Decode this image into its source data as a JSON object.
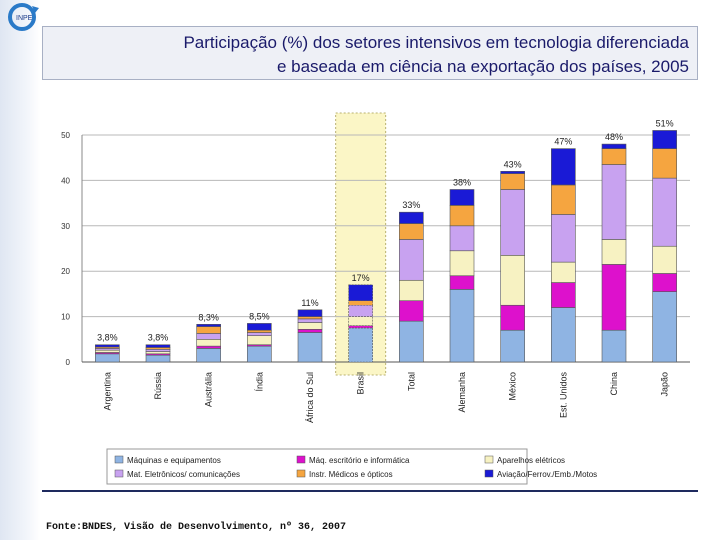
{
  "slide": {
    "title_line1": "Participação (%) dos setores intensivos em tecnologia diferenciada",
    "title_line2": "e baseada em ciência na exportação dos países, 2005",
    "source": "Fonte:BNDES, Visão de Desenvolvimento, nº 36, 2007",
    "logo_text": "INPE"
  },
  "chart_data": {
    "type": "bar",
    "stacked": true,
    "title": "",
    "xlabel": "",
    "ylabel": "",
    "ylim": [
      0,
      50
    ],
    "yticks": [
      "0",
      "10",
      "20",
      "30",
      "40",
      "50"
    ],
    "grid": true,
    "highlight_category": "Brasil",
    "legend_position": "bottom",
    "categories": [
      "Argentina",
      "Rússia",
      "Austrália",
      "Índia",
      "África do Sul",
      "Brasil",
      "Total",
      "Alemanha",
      "México",
      "Est. Unidos",
      "China",
      "Japão"
    ],
    "totals_labels": [
      "3,8%",
      "3,8%",
      "8,3%",
      "8,5%",
      "11%",
      "17%",
      "33%",
      "38%",
      "43%",
      "47%",
      "48%",
      "51%"
    ],
    "series": [
      {
        "name": "Máquinas e equipamentos",
        "color": "#8fb4e3",
        "values": [
          1.8,
          1.5,
          3.0,
          3.5,
          6.5,
          7.5,
          9.0,
          16.0,
          7.0,
          12.0,
          7.0,
          15.5
        ]
      },
      {
        "name": "Máq. escritório e informática",
        "color": "#dd11cc",
        "values": [
          0.3,
          0.3,
          0.5,
          0.3,
          0.7,
          0.5,
          4.5,
          3.0,
          5.5,
          5.5,
          14.5,
          4.0
        ]
      },
      {
        "name": "Aparelhos elétricos",
        "color": "#f7f2c2",
        "values": [
          0.5,
          0.5,
          1.5,
          2.0,
          1.5,
          2.0,
          4.5,
          5.5,
          11.0,
          4.5,
          5.5,
          6.0
        ]
      },
      {
        "name": "Mat. Eletrônicos/ comunicações",
        "color": "#c8a2f0",
        "values": [
          0.4,
          0.5,
          1.3,
          0.7,
          0.8,
          2.5,
          9.0,
          5.5,
          14.5,
          10.5,
          16.5,
          15.0
        ]
      },
      {
        "name": "Instr. Médicos e ópticos",
        "color": "#f5a540",
        "values": [
          0.3,
          0.4,
          1.5,
          0.5,
          0.5,
          1.0,
          3.5,
          4.5,
          3.5,
          6.5,
          3.5,
          6.5
        ]
      },
      {
        "name": "Aviação/Ferrov./Emb./Motos",
        "color": "#1a1ad6",
        "values": [
          0.5,
          0.6,
          0.5,
          1.5,
          1.5,
          3.5,
          2.5,
          3.5,
          0.5,
          8.0,
          1.0,
          4.0
        ]
      }
    ]
  }
}
